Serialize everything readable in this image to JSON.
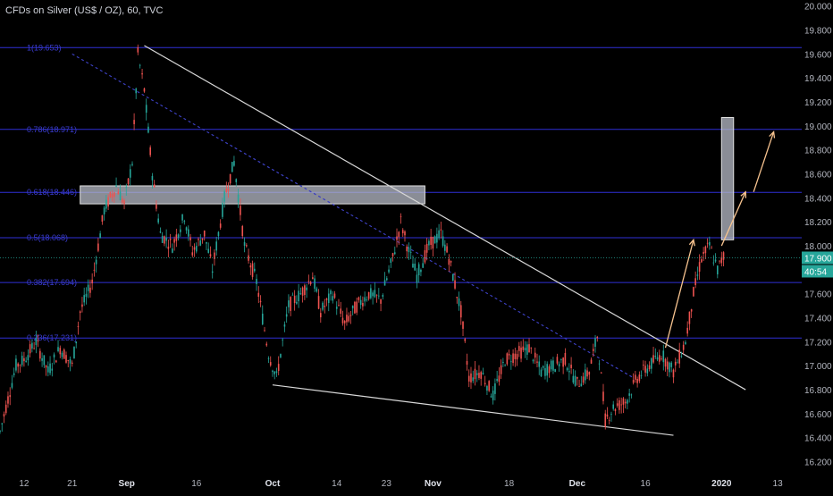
{
  "title": "CFDs on Silver (US$ / OZ), 60, TVC",
  "chart_data": {
    "type": "candlestick",
    "title": "CFDs on Silver (US$ / OZ), 60, TVC",
    "interval": "60",
    "y_axis": {
      "ticks": [
        "20.000",
        "19.800",
        "19.600",
        "19.400",
        "19.200",
        "19.000",
        "18.800",
        "18.600",
        "18.400",
        "18.200",
        "18.000",
        "17.800",
        "17.600",
        "17.400",
        "17.200",
        "17.000",
        "16.800",
        "16.600",
        "16.400",
        "16.200"
      ],
      "ylim": [
        16.1,
        20.05
      ],
      "position": "right"
    },
    "x_axis": {
      "ticks": [
        "12",
        "21",
        "Sep",
        "16",
        "Oct",
        "14",
        "23",
        "Nov",
        "18",
        "Dec",
        "16",
        "2020",
        "13"
      ]
    },
    "current_price": "17.900",
    "countdown": "40:54",
    "fib_levels": [
      {
        "label": "1(19.653)",
        "value": 19.653
      },
      {
        "label": "0.786(18.971)",
        "value": 18.971
      },
      {
        "label": "0.618(18.446)",
        "value": 18.446
      },
      {
        "label": "0.5(18.068)",
        "value": 18.068
      },
      {
        "label": "0.382(17.694)",
        "value": 17.694
      },
      {
        "label": "0.236(17.231)",
        "value": 17.231
      }
    ],
    "price_path": [
      [
        0,
        16.45
      ],
      [
        0.02,
        17.0
      ],
      [
        0.03,
        17.05
      ],
      [
        0.045,
        17.2
      ],
      [
        0.06,
        16.95
      ],
      [
        0.075,
        17.15
      ],
      [
        0.09,
        17.0
      ],
      [
        0.1,
        17.45
      ],
      [
        0.115,
        17.7
      ],
      [
        0.13,
        18.3
      ],
      [
        0.145,
        18.5
      ],
      [
        0.155,
        18.35
      ],
      [
        0.165,
        18.7
      ],
      [
        0.172,
        19.6
      ],
      [
        0.18,
        19.3
      ],
      [
        0.19,
        18.6
      ],
      [
        0.2,
        18.1
      ],
      [
        0.215,
        18.0
      ],
      [
        0.23,
        18.25
      ],
      [
        0.24,
        17.95
      ],
      [
        0.255,
        18.1
      ],
      [
        0.265,
        17.8
      ],
      [
        0.28,
        18.4
      ],
      [
        0.292,
        18.7
      ],
      [
        0.305,
        18.0
      ],
      [
        0.32,
        17.7
      ],
      [
        0.335,
        17.1
      ],
      [
        0.345,
        16.9
      ],
      [
        0.36,
        17.5
      ],
      [
        0.375,
        17.6
      ],
      [
        0.39,
        17.75
      ],
      [
        0.4,
        17.45
      ],
      [
        0.415,
        17.6
      ],
      [
        0.43,
        17.35
      ],
      [
        0.445,
        17.5
      ],
      [
        0.46,
        17.6
      ],
      [
        0.475,
        17.55
      ],
      [
        0.49,
        17.9
      ],
      [
        0.5,
        18.2
      ],
      [
        0.51,
        17.95
      ],
      [
        0.52,
        17.75
      ],
      [
        0.535,
        18.0
      ],
      [
        0.55,
        18.1
      ],
      [
        0.56,
        17.9
      ],
      [
        0.575,
        17.45
      ],
      [
        0.585,
        16.9
      ],
      [
        0.6,
        16.95
      ],
      [
        0.615,
        16.75
      ],
      [
        0.63,
        17.05
      ],
      [
        0.645,
        17.1
      ],
      [
        0.66,
        17.15
      ],
      [
        0.675,
        16.95
      ],
      [
        0.69,
        17.0
      ],
      [
        0.705,
        17.05
      ],
      [
        0.72,
        16.85
      ],
      [
        0.735,
        16.95
      ],
      [
        0.745,
        17.25
      ],
      [
        0.755,
        16.55
      ],
      [
        0.765,
        16.65
      ],
      [
        0.78,
        16.7
      ],
      [
        0.795,
        16.9
      ],
      [
        0.81,
        17.0
      ],
      [
        0.825,
        17.1
      ],
      [
        0.84,
        16.95
      ],
      [
        0.855,
        17.2
      ],
      [
        0.865,
        17.6
      ],
      [
        0.875,
        17.9
      ],
      [
        0.885,
        18.0
      ],
      [
        0.895,
        17.8
      ],
      [
        0.905,
        17.95
      ]
    ],
    "trendlines": [
      {
        "from": [
          0.18,
          19.67
        ],
        "to": [
          0.93,
          16.8
        ],
        "color": "#d8d8d8"
      },
      {
        "from": [
          0.34,
          16.84
        ],
        "to": [
          0.84,
          16.42
        ],
        "color": "#d8d8d8"
      },
      {
        "from": [
          0.09,
          19.6
        ],
        "to": [
          0.79,
          16.9
        ],
        "color": "#3b3fbf",
        "dashed": true
      }
    ],
    "zones": [
      {
        "y_top": 18.5,
        "y_bottom": 18.35,
        "x_from": 0.1,
        "x_to": 0.53
      },
      {
        "y_top": 19.07,
        "y_bottom": 18.05,
        "x_from": 0.9,
        "x_to": 0.915
      }
    ],
    "arrows": [
      {
        "from": [
          0.83,
          17.15
        ],
        "to": [
          0.865,
          18.05
        ]
      },
      {
        "from": [
          0.9,
          18.0
        ],
        "to": [
          0.93,
          18.45
        ]
      },
      {
        "from": [
          0.94,
          18.45
        ],
        "to": [
          0.965,
          18.95
        ]
      }
    ]
  }
}
